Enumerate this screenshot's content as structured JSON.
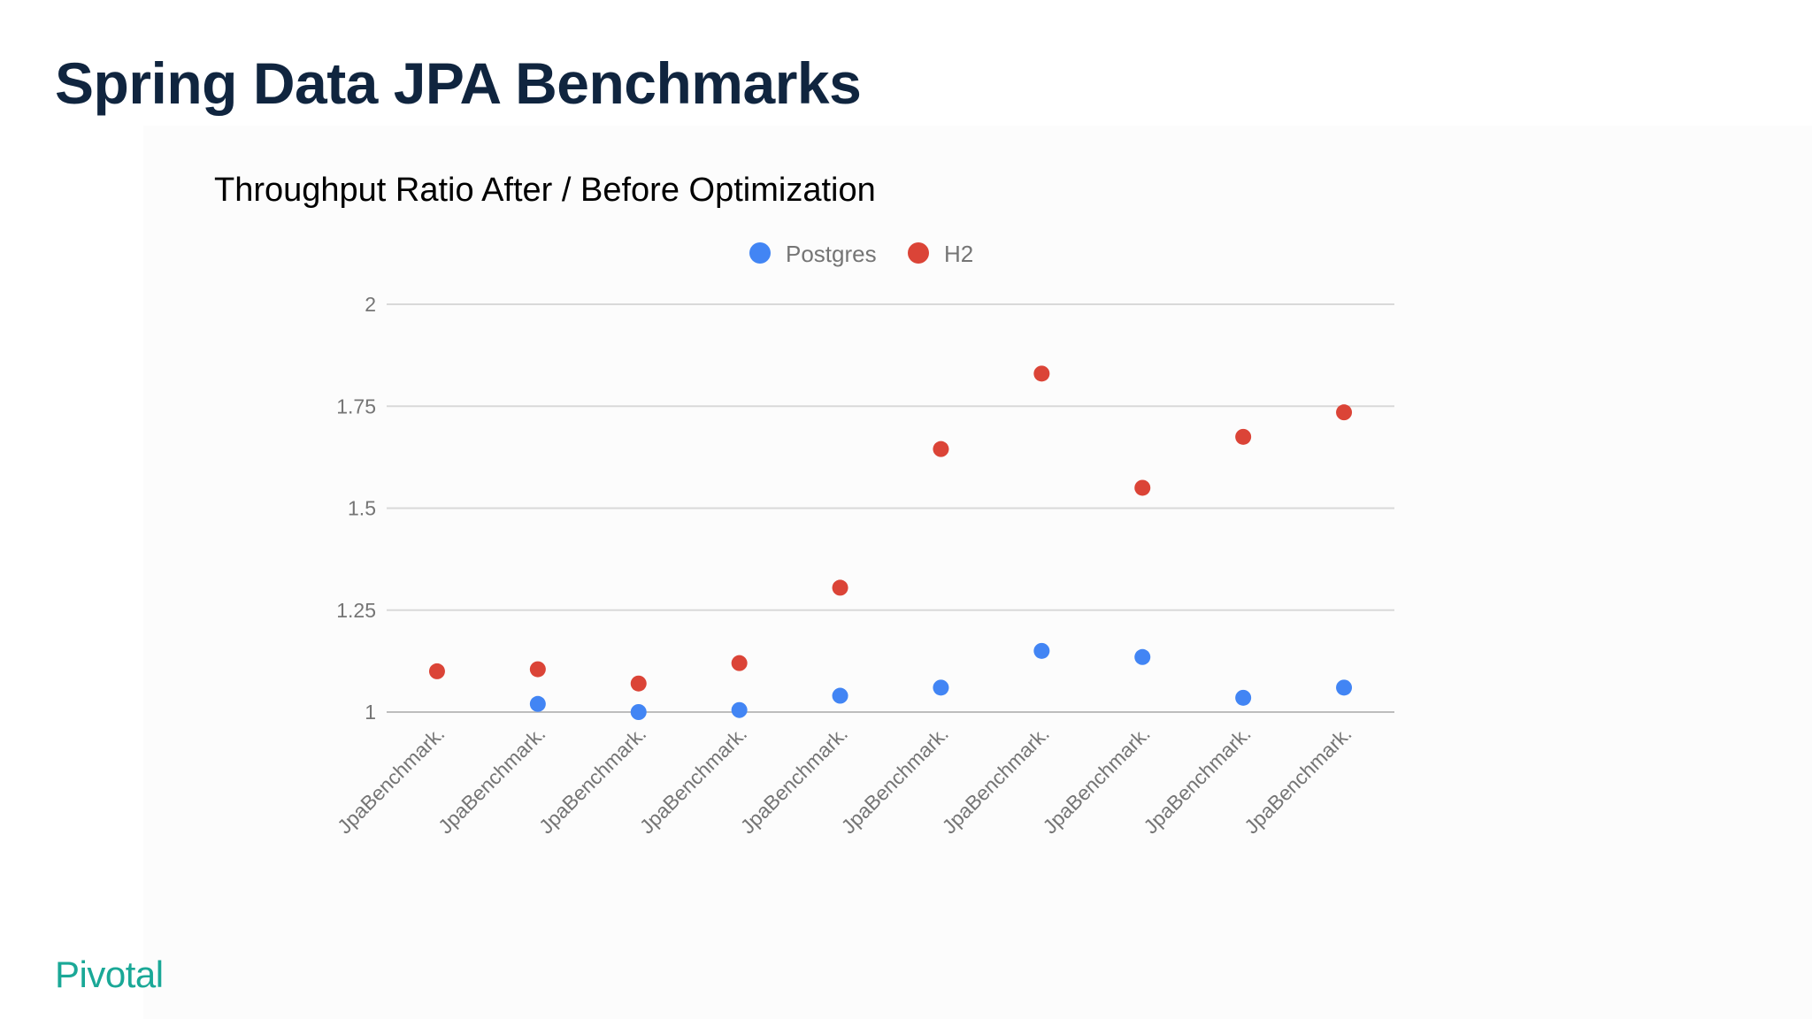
{
  "slide": {
    "title": "Spring Data JPA Benchmarks",
    "brand": "Pivotal"
  },
  "colors": {
    "title": "#10253f",
    "brand": "#1aa897",
    "postgres": "#4285f4",
    "h2": "#db4437",
    "gridline": "#cccccc",
    "axis_text": "#757575"
  },
  "chart_data": {
    "type": "scatter",
    "title": "Throughput Ratio After / Before Optimization",
    "xlabel": "",
    "ylabel": "",
    "ylim": [
      1,
      2
    ],
    "yticks": [
      "1",
      "1.25",
      "1.5",
      "1.75",
      "2"
    ],
    "grid": true,
    "legend_position": "top",
    "categories": [
      "JpaBenchmark.",
      "JpaBenchmark.",
      "JpaBenchmark.",
      "JpaBenchmark.",
      "JpaBenchmark.",
      "JpaBenchmark.",
      "JpaBenchmark.",
      "JpaBenchmark.",
      "JpaBenchmark.",
      "JpaBenchmark."
    ],
    "series": [
      {
        "name": "Postgres",
        "color": "#4285f4",
        "values": [
          null,
          1.02,
          1.0,
          1.005,
          1.04,
          1.06,
          1.15,
          1.135,
          1.035,
          1.06
        ]
      },
      {
        "name": "H2",
        "color": "#db4437",
        "values": [
          1.1,
          1.105,
          1.07,
          1.12,
          1.305,
          1.645,
          1.83,
          1.55,
          1.675,
          1.735
        ]
      }
    ]
  }
}
